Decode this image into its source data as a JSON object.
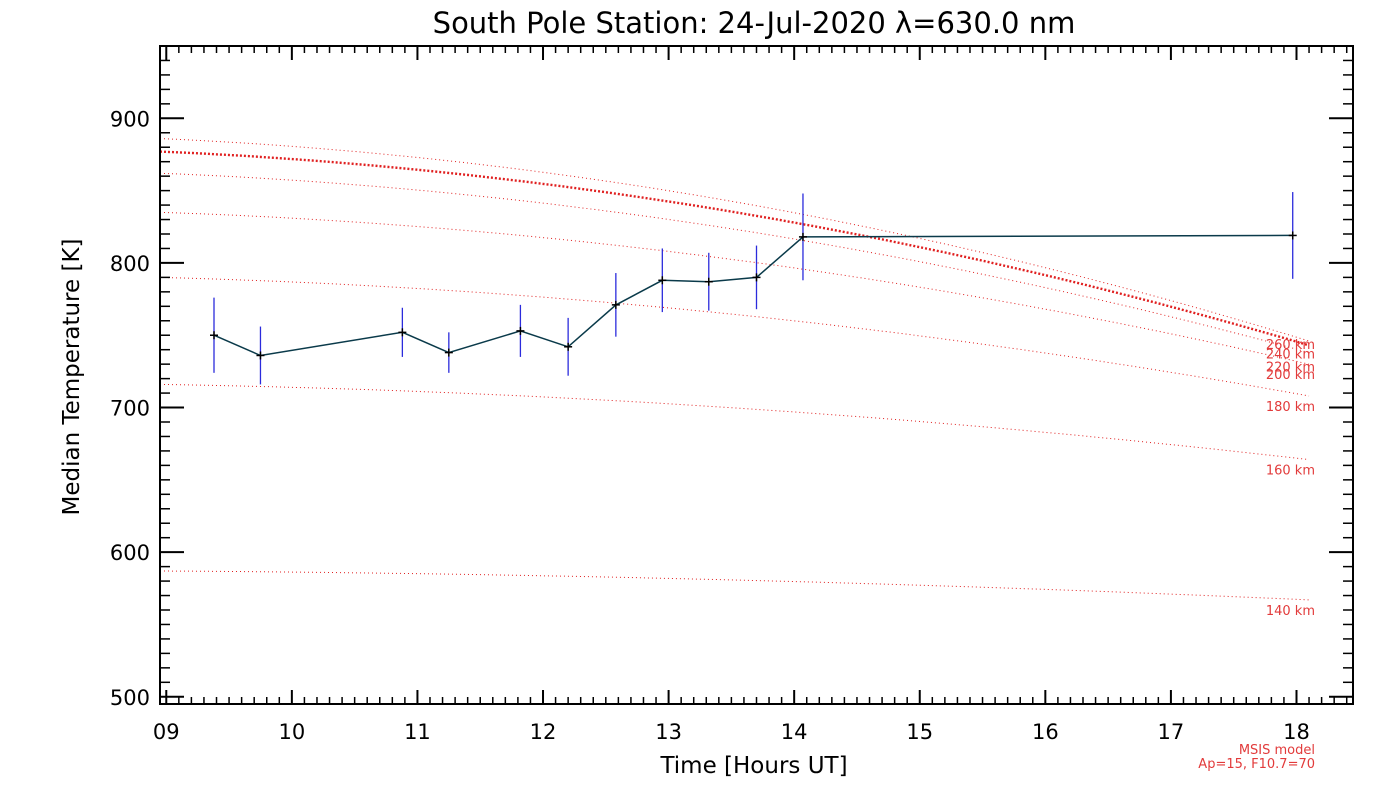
{
  "chart_data": {
    "type": "line",
    "title": "South Pole Station: 24-Jul-2020 λ=630.0 nm",
    "xlabel": "Time [Hours UT]",
    "ylabel": "Median Temperature [K]",
    "xlim": [
      8.95,
      18.45
    ],
    "ylim": [
      495,
      950
    ],
    "xticks": [
      9,
      10,
      11,
      12,
      13,
      14,
      15,
      16,
      17,
      18
    ],
    "xtick_labels": [
      "09",
      "10",
      "11",
      "12",
      "13",
      "14",
      "15",
      "16",
      "17",
      "18"
    ],
    "yticks": [
      500,
      600,
      700,
      800,
      900
    ],
    "ytick_labels": [
      "500",
      "600",
      "700",
      "800",
      "900"
    ],
    "colors": {
      "measurement": "#0a3a4a",
      "error_bar": "#2b2bdc",
      "model": "#e02020",
      "model_text": "#e23b3b"
    },
    "measurement": {
      "name": "Median temperature",
      "x": [
        9.38,
        9.75,
        10.88,
        11.25,
        11.82,
        12.2,
        12.58,
        12.95,
        13.32,
        13.7,
        14.07,
        17.97
      ],
      "y": [
        750,
        736,
        752,
        738,
        753,
        742,
        771,
        788,
        787,
        790,
        818,
        819
      ],
      "err": [
        26,
        20,
        17,
        14,
        18,
        20,
        22,
        22,
        20,
        22,
        30,
        30
      ]
    },
    "model_lines": [
      {
        "name": "MSIS 140 km",
        "label": "140 km",
        "y_start": 587,
        "y_end": 567
      },
      {
        "name": "MSIS 160 km",
        "label": "160 km",
        "y_start": 716,
        "y_end": 664
      },
      {
        "name": "MSIS 180 km",
        "label": "180 km",
        "y_start": 790,
        "y_end": 708
      },
      {
        "name": "MSIS 200 km",
        "label": "200 km",
        "y_start": 835,
        "y_end": 730
      },
      {
        "name": "MSIS 220 km",
        "label": "220 km",
        "y_start": 862,
        "y_end": 738
      },
      {
        "name": "MSIS 240 km",
        "label": "240 km",
        "y_start": 877,
        "y_end": 743
      },
      {
        "name": "MSIS 260 km",
        "label": "260 km",
        "y_start": 886,
        "y_end": 746
      }
    ],
    "annotations": [
      "MSIS model",
      "Ap=15, F10.7=70"
    ]
  }
}
